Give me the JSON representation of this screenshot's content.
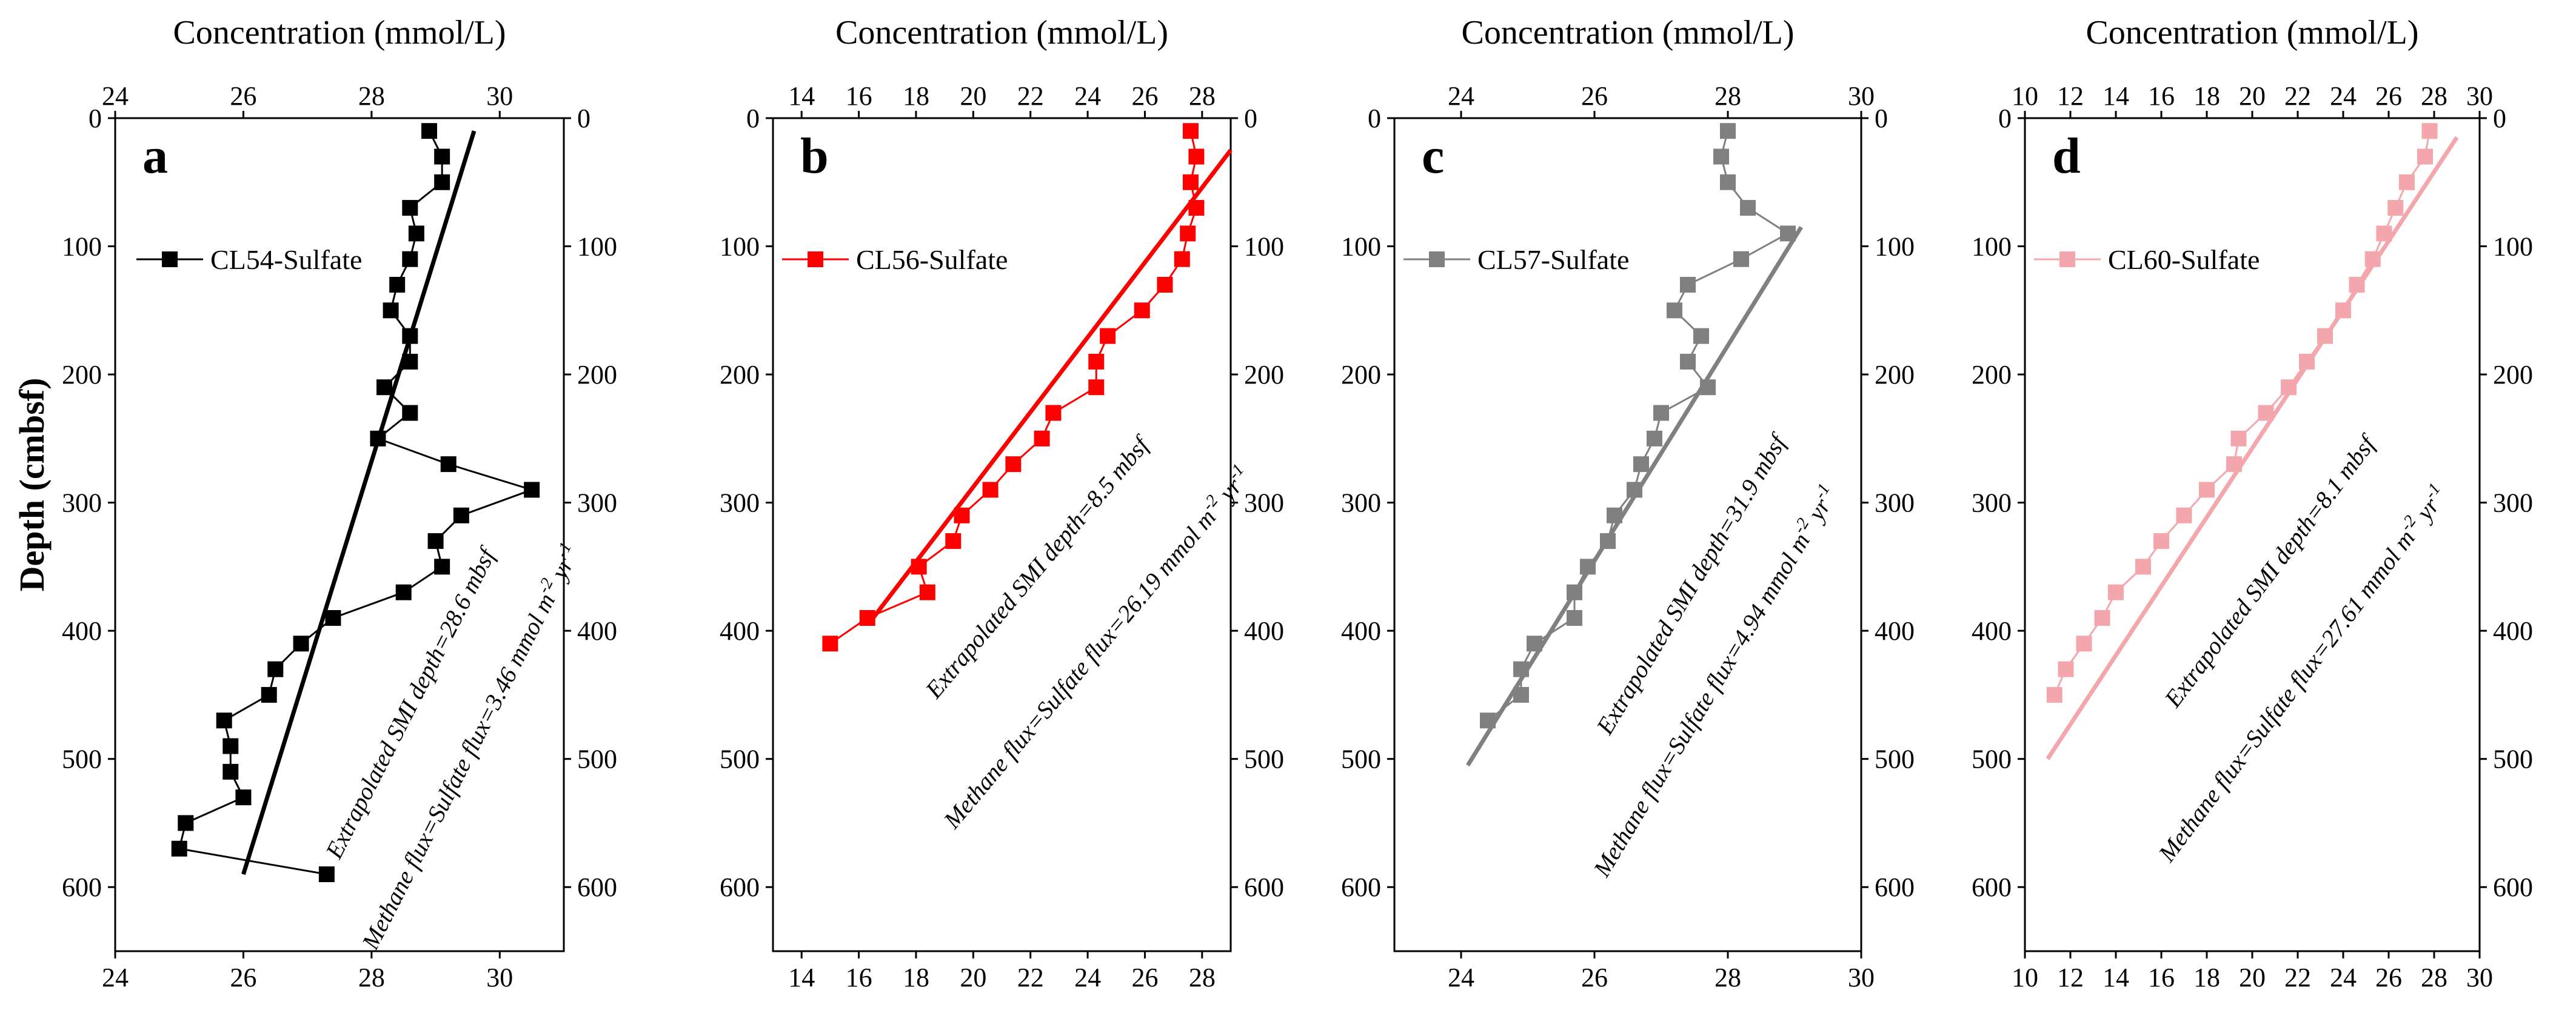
{
  "chart_data": [
    {
      "type": "scatter",
      "panel": "a",
      "title": "Concentration (mmol/L)",
      "xlabel": "Concentration (mmol/L)",
      "ylabel": "Depth (cmbsf)",
      "xlim": [
        24,
        31
      ],
      "ylim": [
        0,
        650
      ],
      "xticks": [
        24,
        26,
        28,
        30
      ],
      "yticks": [
        0,
        100,
        200,
        300,
        400,
        500,
        600
      ],
      "color": "#000000",
      "series": [
        {
          "name": "CL54-Sulfate",
          "x": [
            28.9,
            29.1,
            29.1,
            28.6,
            28.7,
            28.6,
            28.4,
            28.3,
            28.6,
            28.6,
            28.2,
            28.6,
            28.1,
            29.2,
            30.5,
            29.4,
            29.0,
            29.1,
            28.5,
            27.4,
            26.9,
            26.5,
            26.4,
            25.7,
            25.8,
            25.8,
            26.0,
            25.1,
            25.0,
            27.3
          ],
          "y": [
            10,
            30,
            50,
            70,
            90,
            110,
            130,
            150,
            170,
            190,
            210,
            230,
            250,
            270,
            290,
            310,
            330,
            350,
            370,
            390,
            410,
            430,
            450,
            470,
            490,
            510,
            530,
            550,
            570,
            590
          ]
        }
      ],
      "fit": {
        "x1": 29.6,
        "y1": 10,
        "x2": 26.0,
        "y2": 590
      },
      "annotations": [
        "Extrapolated SMI depth=28.6 mbsf",
        "Methane flux=Sulfate flux=3.46 mmol m",
        "-2",
        " yr",
        "-1"
      ]
    },
    {
      "type": "scatter",
      "panel": "b",
      "title": "Concentration (mmol/L)",
      "xlabel": "Concentration (mmol/L)",
      "ylabel": "Depth (cmbsf)",
      "xlim": [
        13,
        29
      ],
      "ylim": [
        0,
        650
      ],
      "xticks": [
        14,
        16,
        18,
        20,
        22,
        24,
        26,
        28
      ],
      "yticks": [
        0,
        100,
        200,
        300,
        400,
        500,
        600
      ],
      "color": "#ff0000",
      "series": [
        {
          "name": "CL56-Sulfate",
          "x": [
            27.6,
            27.8,
            27.6,
            27.8,
            27.5,
            27.3,
            26.7,
            25.9,
            24.7,
            24.3,
            24.3,
            22.8,
            22.4,
            21.4,
            20.6,
            19.6,
            19.3,
            18.1,
            18.4,
            16.3,
            15.0
          ],
          "y": [
            10,
            30,
            50,
            70,
            90,
            110,
            130,
            150,
            170,
            190,
            210,
            230,
            250,
            270,
            290,
            310,
            330,
            350,
            370,
            390,
            410
          ]
        }
      ],
      "fit": {
        "x1": 29.0,
        "y1": 25,
        "x2": 16.5,
        "y2": 390
      },
      "annotations": [
        "Extrapolated SMI depth=8.5 mbsf",
        "Methane flux=Sulfate flux=26.19 mmol m",
        "-2",
        " yr",
        "-1"
      ]
    },
    {
      "type": "scatter",
      "panel": "c",
      "title": "Concentration (mmol/L)",
      "xlabel": "Concentration (mmol/L)",
      "ylabel": "Depth (cmbsf)",
      "xlim": [
        23,
        30
      ],
      "ylim": [
        0,
        650
      ],
      "xticks": [
        24,
        26,
        28,
        30
      ],
      "yticks": [
        0,
        100,
        200,
        300,
        400,
        500,
        600
      ],
      "color": "#808080",
      "series": [
        {
          "name": "CL57-Sulfate",
          "x": [
            28.0,
            27.9,
            28.0,
            28.3,
            28.9,
            28.2,
            27.4,
            27.2,
            27.6,
            27.4,
            27.7,
            27.0,
            26.9,
            26.7,
            26.6,
            26.3,
            26.2,
            25.9,
            25.7,
            25.7,
            25.1,
            24.9,
            24.9,
            24.4
          ],
          "y": [
            10,
            30,
            50,
            70,
            90,
            110,
            130,
            150,
            170,
            190,
            210,
            230,
            250,
            270,
            290,
            310,
            330,
            350,
            370,
            390,
            410,
            430,
            450,
            470
          ]
        }
      ],
      "fit": {
        "x1": 29.1,
        "y1": 85,
        "x2": 24.1,
        "y2": 505
      },
      "annotations": [
        "Extrapolated SMI depth=31.9 mbsf",
        "Methane flux=Sulfate flux=4.94 mmol m",
        "-2",
        " yr",
        "-1"
      ]
    },
    {
      "type": "scatter",
      "panel": "d",
      "title": "Concentration (mmol/L)",
      "xlabel": "Concentration (mmol/L)",
      "ylabel": "Depth (cmbsf)",
      "xlim": [
        10,
        30
      ],
      "ylim": [
        0,
        650
      ],
      "xticks": [
        10,
        12,
        14,
        16,
        18,
        20,
        22,
        24,
        26,
        28,
        30
      ],
      "yticks": [
        0,
        100,
        200,
        300,
        400,
        500,
        600
      ],
      "color": "#f4a6ad",
      "series": [
        {
          "name": "CL60-Sulfate",
          "x": [
            27.8,
            27.6,
            26.8,
            26.3,
            25.8,
            25.3,
            24.6,
            24.0,
            23.2,
            22.4,
            21.6,
            20.6,
            19.4,
            19.2,
            18.0,
            17.0,
            16.0,
            15.2,
            14.0,
            13.4,
            12.6,
            11.8,
            11.3
          ],
          "y": [
            10,
            30,
            50,
            70,
            90,
            110,
            130,
            150,
            170,
            190,
            210,
            230,
            250,
            270,
            290,
            310,
            330,
            350,
            370,
            390,
            410,
            430,
            450
          ]
        }
      ],
      "fit": {
        "x1": 29.0,
        "y1": 15,
        "x2": 11.0,
        "y2": 500
      },
      "annotations": [
        "Extrapolated SMI depth=8.1 mbsf",
        "Methane flux=Sulfate flux=27.61 mmol m",
        "-2",
        " yr",
        "-1"
      ]
    }
  ]
}
